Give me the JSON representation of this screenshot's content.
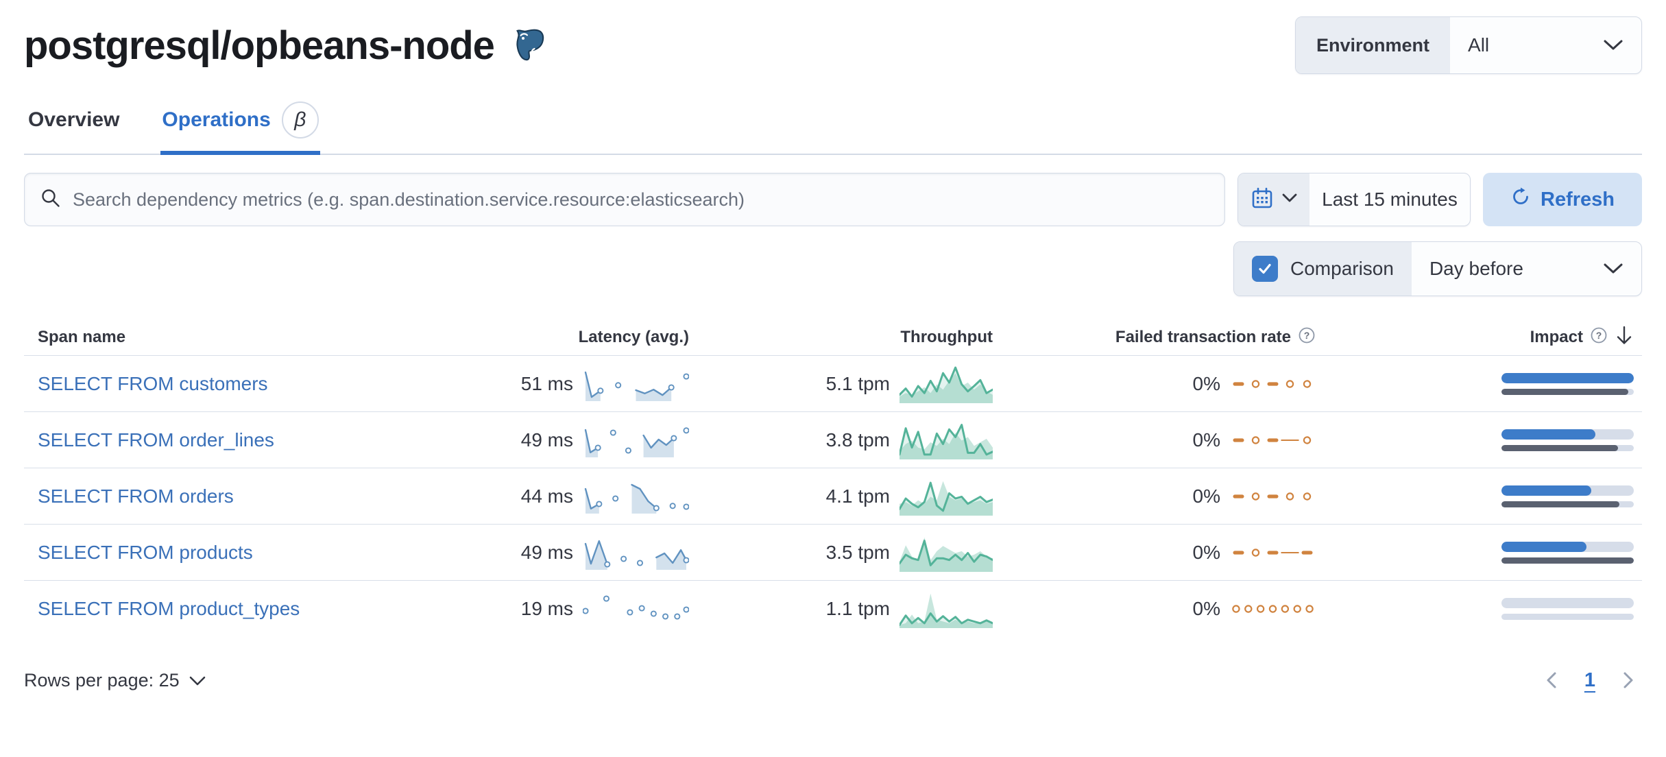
{
  "page": {
    "title": "postgresql/opbeans-node"
  },
  "environment": {
    "label": "Environment",
    "value": "All"
  },
  "tabs": [
    {
      "label": "Overview",
      "active": false
    },
    {
      "label": "Operations",
      "active": true,
      "badge": "β"
    }
  ],
  "toolbar": {
    "search_placeholder": "Search dependency metrics (e.g. span.destination.service.resource:elasticsearch)",
    "time_range": "Last 15 minutes",
    "refresh_label": "Refresh",
    "comparison_label": "Comparison",
    "comparison_checked": true,
    "comparison_value": "Day before"
  },
  "table": {
    "columns": {
      "span_name": "Span name",
      "latency": "Latency (avg.)",
      "throughput": "Throughput",
      "failed_rate": "Failed transaction rate",
      "impact": "Impact"
    },
    "rows": [
      {
        "span_name": "SELECT FROM customers",
        "latency": "51 ms",
        "throughput": "5.1 tpm",
        "failed_rate": "0%",
        "latency_spark": {
          "values": [
            0.95,
            0.05,
            0.28,
            null,
            0.48,
            null,
            0.3,
            0.18,
            0.32,
            0.12,
            0.4,
            null,
            0.8
          ]
        },
        "throughput_spark": {
          "previous": [
            0.15,
            0.25,
            0.2,
            0.3,
            0.42,
            0.25,
            0.5,
            0.35,
            0.6,
            0.82,
            0.45,
            0.55,
            0.35,
            0.5,
            0.3,
            0.2
          ],
          "current": [
            0.2,
            0.38,
            0.15,
            0.45,
            0.25,
            0.6,
            0.3,
            0.82,
            0.55,
            0.98,
            0.5,
            0.3,
            0.45,
            0.62,
            0.25,
            0.35
          ]
        },
        "failed_spark": {
          "marks": [
            "dash",
            "dot",
            "dash",
            "dot",
            "dot"
          ]
        },
        "impact": {
          "current": 1.0,
          "previous": 0.96
        }
      },
      {
        "span_name": "SELECT FROM order_lines",
        "latency": "49 ms",
        "throughput": "3.8 tpm",
        "failed_rate": "0%",
        "latency_spark": {
          "values": [
            0.9,
            0.08,
            0.25,
            null,
            0.8,
            null,
            0.15,
            null,
            0.7,
            0.25,
            0.55,
            0.35,
            0.6,
            null,
            0.88
          ]
        },
        "throughput_spark": {
          "previous": [
            0.2,
            0.4,
            0.5,
            0.3,
            0.25,
            0.45,
            0.35,
            0.55,
            0.4,
            0.72,
            0.5,
            0.6,
            0.35,
            0.45,
            0.55,
            0.3
          ],
          "current": [
            0.1,
            0.85,
            0.3,
            0.75,
            0.1,
            0.1,
            0.7,
            0.4,
            0.82,
            0.6,
            0.95,
            0.15,
            0.15,
            0.4,
            0.1,
            0.18
          ]
        },
        "failed_spark": {
          "marks": [
            "dash",
            "dot",
            "dash",
            "line",
            "dot"
          ]
        },
        "impact": {
          "current": 0.71,
          "previous": 0.88
        }
      },
      {
        "span_name": "SELECT FROM orders",
        "latency": "44 ms",
        "throughput": "4.1 tpm",
        "failed_rate": "0%",
        "latency_spark": {
          "values": [
            0.8,
            0.08,
            0.25,
            null,
            0.45,
            null,
            0.95,
            0.8,
            0.35,
            0.1,
            null,
            0.18,
            null,
            0.15
          ]
        },
        "throughput_spark": {
          "previous": [
            0.3,
            0.35,
            0.25,
            0.4,
            0.3,
            0.5,
            0.4,
            0.95,
            0.5,
            0.4,
            0.45,
            0.3,
            0.35,
            0.4,
            0.3,
            0.35
          ],
          "current": [
            0.15,
            0.45,
            0.3,
            0.2,
            0.35,
            0.9,
            0.25,
            0.1,
            0.6,
            0.45,
            0.5,
            0.3,
            0.4,
            0.5,
            0.35,
            0.42
          ]
        },
        "failed_spark": {
          "marks": [
            "dash",
            "dot",
            "dash",
            "dot",
            "dot"
          ]
        },
        "impact": {
          "current": 0.68,
          "previous": 0.89
        }
      },
      {
        "span_name": "SELECT FROM products",
        "latency": "49 ms",
        "throughput": "3.5 tpm",
        "failed_rate": "0%",
        "latency_spark": {
          "values": [
            0.85,
            0.12,
            0.95,
            0.1,
            null,
            0.3,
            null,
            0.15,
            null,
            0.35,
            0.5,
            0.15,
            0.62,
            0.25
          ]
        },
        "throughput_spark": {
          "previous": [
            0.25,
            0.72,
            0.4,
            0.3,
            0.95,
            0.3,
            0.55,
            0.7,
            0.6,
            0.5,
            0.55,
            0.4,
            0.45,
            0.55,
            0.4,
            0.35
          ],
          "current": [
            0.2,
            0.45,
            0.35,
            0.3,
            0.85,
            0.15,
            0.35,
            0.35,
            0.3,
            0.45,
            0.3,
            0.5,
            0.25,
            0.45,
            0.4,
            0.3
          ]
        },
        "failed_spark": {
          "marks": [
            "dash",
            "dot",
            "dash",
            "line",
            "dash"
          ]
        },
        "impact": {
          "current": 0.64,
          "previous": 1.0
        }
      },
      {
        "span_name": "SELECT FROM product_types",
        "latency": "19 ms",
        "throughput": "1.1 tpm",
        "failed_rate": "0%",
        "latency_spark": {
          "mode": "dots",
          "values": [
            0.45,
            null,
            0.9,
            null,
            0.4,
            0.55,
            0.35,
            0.25,
            0.25,
            0.5
          ]
        },
        "throughput_spark": {
          "previous": [
            0.05,
            0.1,
            0.35,
            0.1,
            0.15,
            0.95,
            0.2,
            0.15,
            0.1,
            0.2,
            0.1,
            0.15,
            0.1,
            0.1,
            0.15,
            0.1
          ],
          "current": [
            0.05,
            0.32,
            0.1,
            0.25,
            0.1,
            0.38,
            0.15,
            0.3,
            0.15,
            0.28,
            0.1,
            0.2,
            0.15,
            0.1,
            0.18,
            0.1
          ]
        },
        "failed_spark": {
          "marks": [
            "dot",
            "dot",
            "dot",
            "dot",
            "dot",
            "dot",
            "dot"
          ]
        },
        "impact": {
          "current": 0.0,
          "previous": 0.0
        }
      }
    ]
  },
  "footer": {
    "rows_per_page": "Rows per page: 25",
    "page_number": "1"
  },
  "colors": {
    "accent": "#2f6fc7",
    "link": "#3a70b8",
    "latency": "#6092c0",
    "latency_fill": "rgba(96,146,192,0.28)",
    "throughput": "#54b399",
    "throughput_prev_fill": "rgba(84,179,153,0.33)",
    "throughput_curr_fill": "rgba(84,179,153,0.16)",
    "failed": "#d0833f",
    "impact_current": "#3d7cc9",
    "impact_previous": "#5a6170",
    "impact_track": "#d6dde9"
  }
}
